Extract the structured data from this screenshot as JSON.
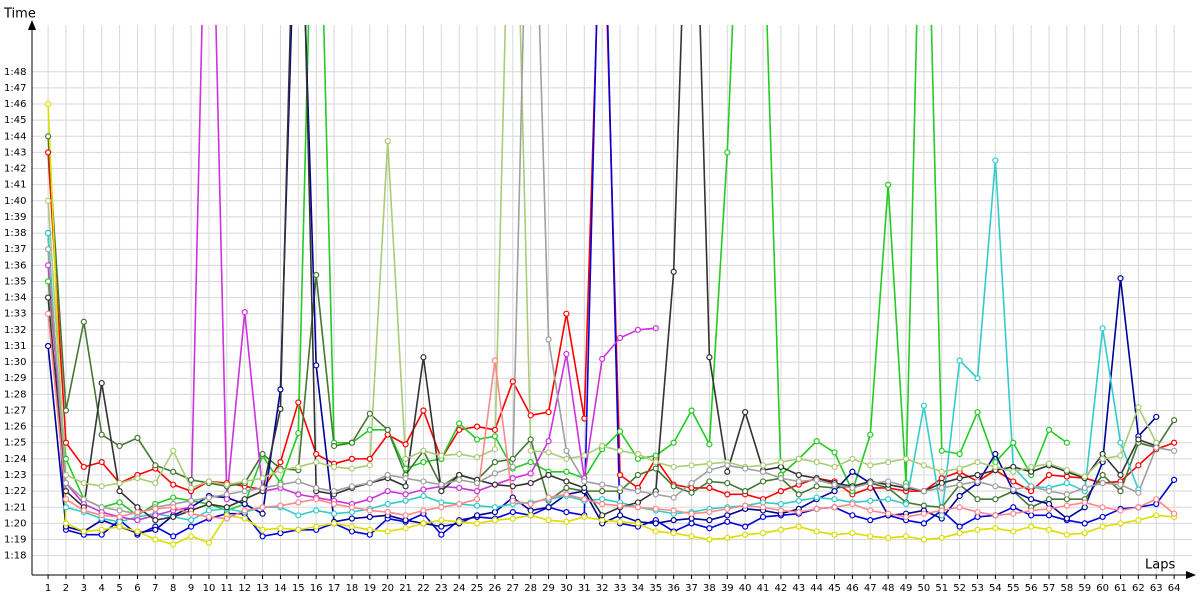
{
  "chart_data": {
    "type": "line",
    "y_label": "Time",
    "x_label": "Laps",
    "grid": true,
    "xlim": [
      0.1,
      65
    ],
    "ylim": [
      76.8,
      110.9
    ],
    "x": [
      1,
      2,
      3,
      4,
      5,
      6,
      7,
      8,
      9,
      10,
      11,
      12,
      13,
      14,
      15,
      16,
      17,
      18,
      19,
      20,
      21,
      22,
      23,
      24,
      25,
      26,
      27,
      28,
      29,
      30,
      31,
      32,
      33,
      34,
      35,
      36,
      37,
      38,
      39,
      40,
      41,
      42,
      43,
      44,
      45,
      46,
      47,
      48,
      49,
      50,
      51,
      52,
      53,
      54,
      55,
      56,
      57,
      58,
      59,
      60,
      61,
      62,
      63,
      64
    ],
    "xticks": [
      1,
      2,
      3,
      4,
      5,
      6,
      7,
      8,
      9,
      10,
      11,
      12,
      13,
      14,
      15,
      16,
      17,
      18,
      19,
      20,
      21,
      22,
      23,
      24,
      25,
      26,
      27,
      28,
      29,
      30,
      31,
      32,
      33,
      34,
      35,
      36,
      37,
      38,
      39,
      40,
      41,
      42,
      43,
      44,
      45,
      46,
      47,
      48,
      49,
      50,
      51,
      52,
      53,
      54,
      55,
      56,
      57,
      58,
      59,
      60,
      61,
      62,
      63,
      64
    ],
    "yticks": [
      {
        "value": 78,
        "label": "1:18"
      },
      {
        "value": 79,
        "label": "1:19"
      },
      {
        "value": 80,
        "label": "1:20"
      },
      {
        "value": 81,
        "label": "1:21"
      },
      {
        "value": 82,
        "label": "1:22"
      },
      {
        "value": 83,
        "label": "1:23"
      },
      {
        "value": 84,
        "label": "1:24"
      },
      {
        "value": 85,
        "label": "1:25"
      },
      {
        "value": 86,
        "label": "1:26"
      },
      {
        "value": 87,
        "label": "1:27"
      },
      {
        "value": 88,
        "label": "1:28"
      },
      {
        "value": 89,
        "label": "1:29"
      },
      {
        "value": 90,
        "label": "1:30"
      },
      {
        "value": 91,
        "label": "1:31"
      },
      {
        "value": 92,
        "label": "1:32"
      },
      {
        "value": 93,
        "label": "1:33"
      },
      {
        "value": 94,
        "label": "1:34"
      },
      {
        "value": 95,
        "label": "1:35"
      },
      {
        "value": 96,
        "label": "1:36"
      },
      {
        "value": 97,
        "label": "1:37"
      },
      {
        "value": 98,
        "label": "1:38"
      },
      {
        "value": 99,
        "label": "1:39"
      },
      {
        "value": 100,
        "label": "1:40"
      },
      {
        "value": 101,
        "label": "1:41"
      },
      {
        "value": 102,
        "label": "1:42"
      },
      {
        "value": 103,
        "label": "1:43"
      },
      {
        "value": 104,
        "label": "1:44"
      },
      {
        "value": 105,
        "label": "1:45"
      },
      {
        "value": 106,
        "label": "1:46"
      },
      {
        "value": 107,
        "label": "1:47"
      },
      {
        "value": 108,
        "label": "1:48"
      }
    ],
    "series": [
      {
        "color": "#ff0000",
        "values": [
          103,
          85,
          83.5,
          83.8,
          82.5,
          83,
          83.4,
          82.4,
          82,
          82.6,
          82.5,
          82.3,
          82.1,
          83.8,
          87.5,
          84.3,
          83.7,
          84,
          84,
          85.5,
          84.9,
          87,
          84,
          85.8,
          86,
          85.8,
          88.8,
          86.7,
          86.9,
          93,
          86.5,
          122,
          83,
          82.2,
          84,
          82.4,
          82.2,
          82.2,
          81.8,
          81.8,
          81.5,
          82,
          82.4,
          82.8,
          82.6,
          81.8,
          82.2,
          82.2,
          82,
          82,
          82.8,
          83.2,
          82.6,
          83.3,
          82.6,
          82,
          83,
          82.9,
          82.8,
          82.5,
          82.6,
          83.6,
          84.6,
          85
        ]
      },
      {
        "color": "#0000dd",
        "values": [
          98,
          79.6,
          79.3,
          79.3,
          80.2,
          79.3,
          79.8,
          79.2,
          79.8,
          80.3,
          80.6,
          80.6,
          79.2,
          79.4,
          79.6,
          79.6,
          80,
          79.5,
          79.3,
          80.3,
          80.1,
          80.6,
          79.3,
          80.2,
          80.4,
          80.3,
          80.7,
          80.5,
          81,
          80.7,
          80.5,
          125,
          80,
          79.8,
          80.2,
          79.5,
          80,
          79.7,
          80.1,
          79.8,
          80.4,
          80.5,
          80.6,
          80.9,
          81,
          80.5,
          80.2,
          80.5,
          80.2,
          80,
          80.8,
          79.8,
          80.4,
          80.5,
          81,
          80.5,
          80.5,
          80.2,
          80,
          80.4,
          80.9,
          81,
          81.2,
          82.7
        ]
      },
      {
        "color": "#22cc22",
        "values": [
          95,
          84,
          81.5,
          81,
          81.3,
          80.5,
          81.2,
          81.6,
          81.4,
          81.2,
          80.8,
          81.2,
          84.2,
          82.5,
          85.6,
          130,
          85,
          85,
          85.8,
          85.8,
          83.4,
          83.8,
          84,
          86.2,
          85.2,
          85.4,
          83.4,
          83.8,
          83.2,
          83.2,
          82.8,
          84.6,
          85.7,
          84,
          84.2,
          85,
          87,
          84.9,
          103,
          130,
          119,
          83,
          84,
          85.1,
          84.4,
          82,
          85.5,
          101,
          82.5,
          130,
          84.5,
          84.3,
          86.9,
          83.8,
          85,
          83,
          85.8,
          85,
          null,
          null,
          null,
          null,
          null,
          null
        ]
      },
      {
        "color": "#447733",
        "values": [
          104,
          87,
          92.5,
          85.5,
          84.8,
          85.3,
          83.6,
          83.2,
          82.7,
          82.5,
          82.3,
          82.5,
          84.3,
          83.4,
          83.3,
          95.4,
          84.8,
          85,
          86.8,
          85.8,
          83,
          84.5,
          82.3,
          83,
          82.7,
          83.8,
          84,
          85.2,
          81.4,
          82.2,
          82,
          82,
          82,
          83,
          83.4,
          82.3,
          81.9,
          82.6,
          82.5,
          82,
          82.6,
          82.8,
          81.8,
          82.3,
          82.2,
          82.3,
          82.5,
          82.2,
          81.3,
          81.1,
          81,
          82.4,
          81.5,
          81.5,
          82,
          81,
          81.5,
          81.5,
          81.5,
          83,
          82,
          85,
          84.7,
          86.4
        ]
      },
      {
        "color": "#000099",
        "values": [
          91,
          79.8,
          79.5,
          80.2,
          79.8,
          79.4,
          79.6,
          80.5,
          81,
          81.7,
          81.6,
          81.2,
          80.6,
          88.3,
          125,
          89.8,
          80.1,
          80.3,
          80.4,
          80.5,
          80.2,
          80,
          79.8,
          80,
          80.5,
          80.7,
          81.6,
          80.8,
          81,
          81.8,
          82,
          80,
          80.5,
          80.1,
          80,
          80.2,
          80.3,
          80.2,
          80.5,
          80.9,
          80.8,
          80.6,
          80.9,
          81.5,
          82,
          83.2,
          82.5,
          80.5,
          80.6,
          80.8,
          80.3,
          81.7,
          82.5,
          84.3,
          82,
          81.5,
          81.2,
          80.3,
          81,
          83.8,
          95.2,
          85.4,
          86.6,
          null
        ]
      },
      {
        "color": "#33cccc",
        "values": [
          98,
          81,
          80.7,
          80.3,
          80.1,
          80.4,
          80.6,
          80.4,
          80.2,
          80.8,
          80.9,
          80.7,
          81,
          81,
          80.5,
          80.8,
          80.6,
          80.7,
          80.9,
          81.2,
          81.4,
          81.7,
          81.3,
          81.2,
          81.1,
          81,
          81.2,
          81.3,
          81.5,
          81.7,
          81.4,
          81.5,
          81.3,
          81,
          80.8,
          80.6,
          80.7,
          80.9,
          81,
          81.1,
          81.3,
          81.2,
          81.4,
          81.6,
          81.5,
          81.3,
          81.4,
          81.5,
          81.2,
          87.3,
          80.5,
          90.1,
          89,
          102.5,
          83.5,
          82.3,
          82.2,
          82.5,
          82,
          92.1,
          85,
          82.1,
          null,
          null
        ]
      },
      {
        "color": "#cc33dd",
        "values": [
          96,
          82.5,
          81.2,
          80.7,
          80.4,
          80.2,
          80.5,
          80.8,
          81,
          130,
          81.5,
          93.1,
          82,
          82.2,
          81.8,
          81.6,
          81.4,
          81.2,
          81.5,
          82,
          81.8,
          82.1,
          82.3,
          82.2,
          82,
          82.4,
          82.8,
          83.1,
          85.1,
          90.5,
          82.8,
          90.2,
          91.5,
          92,
          92.1,
          null,
          null,
          null,
          null,
          null,
          null,
          null,
          null,
          null,
          null,
          null,
          null,
          null,
          null,
          null,
          null,
          null,
          null,
          null,
          null,
          null,
          null,
          null,
          null,
          null,
          null,
          null,
          null,
          null
        ]
      },
      {
        "color": "#dddd00",
        "values": [
          106,
          80,
          79.5,
          79.6,
          79.8,
          79.5,
          79,
          78.7,
          79.2,
          78.8,
          80.5,
          80.3,
          79.6,
          79.7,
          79.6,
          79.8,
          80,
          79.8,
          79.6,
          79.5,
          79.7,
          80,
          80.2,
          80.1,
          80,
          80.2,
          80.3,
          80.5,
          80.2,
          80.1,
          80.4,
          80.2,
          80.1,
          80,
          79.5,
          79.4,
          79.2,
          79,
          79.1,
          79.3,
          79.4,
          79.6,
          79.8,
          79.5,
          79.3,
          79.4,
          79.2,
          79.1,
          79.2,
          79,
          79.1,
          79.4,
          79.6,
          79.7,
          79.5,
          79.8,
          79.6,
          79.3,
          79.4,
          79.8,
          80,
          80.2,
          80.5,
          80.4
        ]
      },
      {
        "color": "#333333",
        "values": [
          94,
          82,
          81,
          88.7,
          82,
          81,
          80.2,
          80.4,
          80.8,
          81.2,
          81,
          81.5,
          82,
          87.1,
          130,
          82,
          81.8,
          82.2,
          82.5,
          82.8,
          82.3,
          90.3,
          82,
          83,
          82.7,
          82.4,
          82.3,
          82.5,
          83,
          82.6,
          82.2,
          80.5,
          81,
          81.3,
          82,
          95.6,
          130,
          90.3,
          83.2,
          86.9,
          83.3,
          83.5,
          83,
          82.8,
          82.5,
          82.3,
          82.6,
          82.4,
          82.2,
          82,
          82.5,
          82.8,
          83,
          83.3,
          83.5,
          83.2,
          83.6,
          83.2,
          82.8,
          84.3,
          83,
          85.2,
          84.8,
          null
        ]
      },
      {
        "color": "#aacc77",
        "values": [
          100,
          83,
          82.5,
          82.3,
          82.5,
          82.8,
          82.5,
          84.5,
          82.2,
          82.6,
          82.4,
          82.6,
          82.8,
          83.3,
          83.5,
          83.8,
          83.5,
          83.4,
          83.6,
          103.7,
          84,
          84.5,
          84.2,
          84.3,
          84.1,
          84.6,
          130,
          84.5,
          84.4,
          84,
          84.2,
          84.8,
          84.5,
          84.3,
          83.8,
          83.5,
          83.6,
          83.7,
          83.8,
          83.5,
          83.6,
          83.8,
          84,
          83.8,
          83.5,
          84,
          83.6,
          83.8,
          84,
          83.6,
          83.2,
          83.4,
          83.8,
          83.5,
          83.2,
          83.5,
          83.7,
          83.3,
          82.9,
          84,
          84.2,
          87.2,
          85,
          null
        ]
      },
      {
        "color": "#a0a0a0",
        "values": [
          97,
          82.5,
          81.5,
          81,
          80.8,
          80.6,
          81,
          81.2,
          81.4,
          81.6,
          81.8,
          82,
          82.2,
          82.4,
          82.6,
          82.2,
          82,
          82.3,
          82.5,
          83,
          82.8,
          82.6,
          82.4,
          82.7,
          82.5,
          83.1,
          83.5,
          130,
          91.4,
          84.5,
          82.6,
          82.4,
          82.2,
          82,
          81.8,
          81.6,
          82.5,
          83.3,
          83.6,
          83.4,
          83.2,
          82.8,
          82.6,
          82.7,
          82.4,
          82.2,
          82.5,
          82.6,
          82.3,
          82,
          82.2,
          82.4,
          82.6,
          82.3,
          82.1,
          82.3,
          82,
          81.8,
          82.2,
          82.5,
          82.4,
          81.9,
          84.7,
          84.5
        ]
      },
      {
        "color": "#ff8888",
        "values": [
          93,
          81.5,
          80.8,
          80.5,
          80.4,
          80.7,
          80.9,
          81,
          80.6,
          80.4,
          80.3,
          80.8,
          81,
          81.1,
          81.3,
          81.5,
          81.2,
          81,
          80.8,
          80.7,
          80.5,
          80.8,
          81,
          81.2,
          81.5,
          90.1,
          81.4,
          81.2,
          81.6,
          81.8,
          81.5,
          81.2,
          81.1,
          81,
          80.9,
          80.8,
          80.6,
          80.7,
          80.9,
          81.1,
          81,
          80.8,
          80.7,
          80.9,
          81,
          81.2,
          80.8,
          80.6,
          80.4,
          80.6,
          80.8,
          81,
          80.7,
          80.5,
          80.6,
          80.8,
          80.9,
          81.1,
          81.3,
          81,
          80.8,
          81,
          81.5,
          80.6
        ]
      }
    ]
  }
}
